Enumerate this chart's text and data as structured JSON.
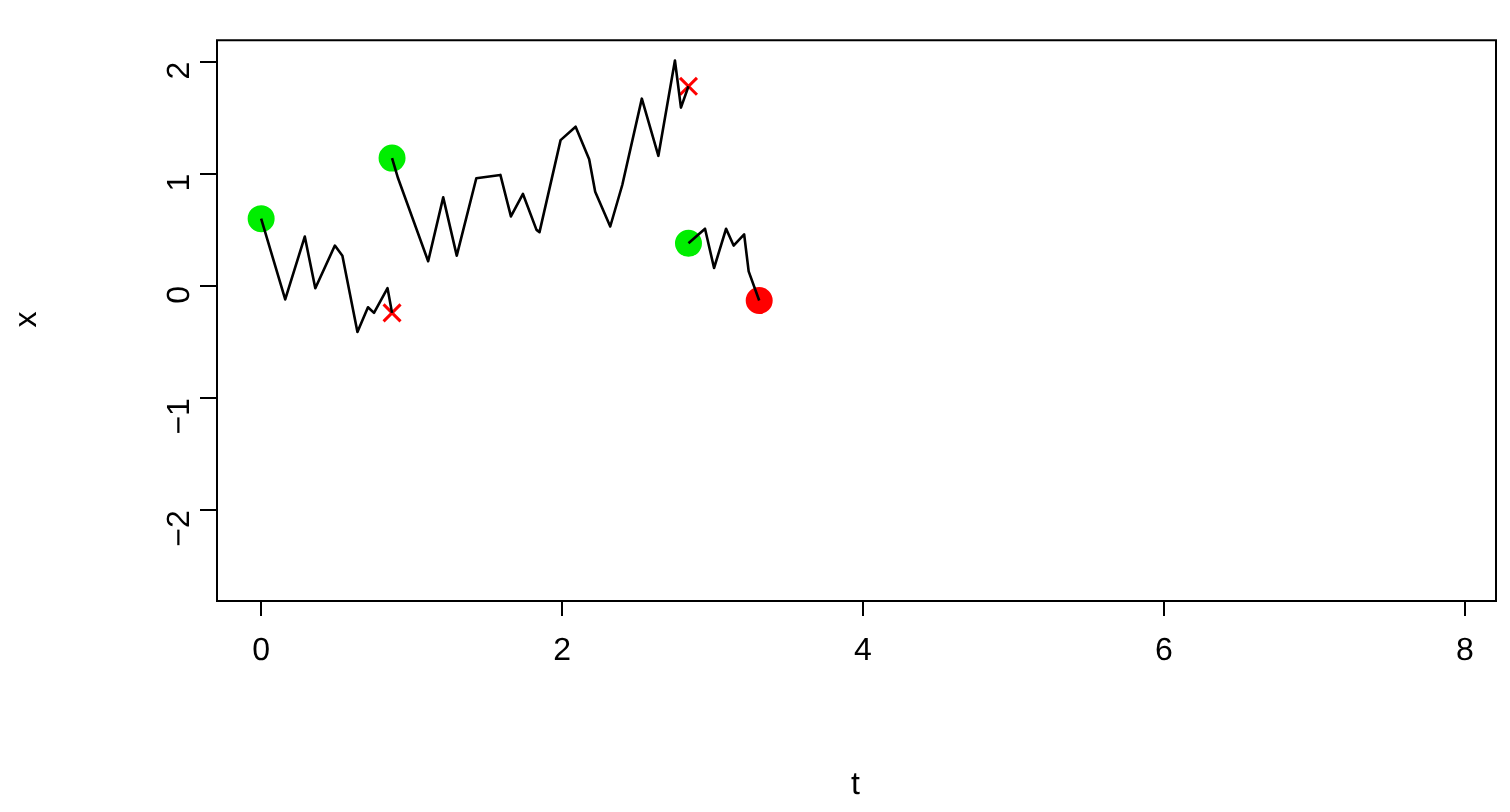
{
  "chart_data": {
    "type": "line",
    "xlabel": "t",
    "ylabel": "x",
    "xlim": [
      -0.3,
      8.2
    ],
    "ylim": [
      -2.8,
      2.2
    ],
    "xticks": [
      0,
      2,
      4,
      6,
      8
    ],
    "yticks": [
      -2,
      -1,
      0,
      1,
      2
    ],
    "grid": false,
    "legend": false,
    "series": [
      {
        "color": "#000000",
        "marker": "none",
        "x": [
          0,
          0.16,
          0.29,
          0.36,
          0.49,
          0.54,
          0.64,
          0.71,
          0.75,
          0.84,
          0.87
        ],
        "values": [
          0.6,
          -0.12,
          0.44,
          -0.02,
          0.36,
          0.27,
          -0.41,
          -0.19,
          -0.24,
          -0.02,
          -0.24
        ]
      },
      {
        "color": "#000000",
        "marker": "none",
        "x": [
          0.87,
          0.91,
          1.11,
          1.21,
          1.3,
          1.43,
          1.59,
          1.66,
          1.74,
          1.83,
          1.85,
          1.99,
          2.09,
          2.18,
          2.22,
          2.32,
          2.4,
          2.53,
          2.64,
          2.75,
          2.79,
          2.84
        ],
        "values": [
          1.14,
          0.96,
          0.22,
          0.79,
          0.27,
          0.96,
          0.99,
          0.62,
          0.82,
          0.5,
          0.48,
          1.3,
          1.42,
          1.13,
          0.84,
          0.53,
          0.9,
          1.67,
          1.16,
          2.01,
          1.59,
          1.78
        ]
      },
      {
        "color": "#000000",
        "marker": "none",
        "x": [
          2.84,
          2.95,
          3.01,
          3.09,
          3.14,
          3.21,
          3.24,
          3.31
        ],
        "values": [
          0.38,
          0.51,
          0.16,
          0.51,
          0.36,
          0.46,
          0.13,
          -0.13
        ]
      },
      {
        "type": "scatter",
        "color": "#00ee00",
        "marker": "circle",
        "x": [
          0,
          0.87,
          2.84
        ],
        "values": [
          0.6,
          1.14,
          0.38
        ]
      },
      {
        "type": "scatter",
        "color": "#ff0000",
        "marker": "cross",
        "x": [
          0.87,
          2.84
        ],
        "values": [
          -0.24,
          1.78
        ]
      },
      {
        "type": "scatter",
        "color": "#ff0000",
        "marker": "circle",
        "x": [
          3.31
        ],
        "values": [
          -0.13
        ]
      }
    ]
  }
}
